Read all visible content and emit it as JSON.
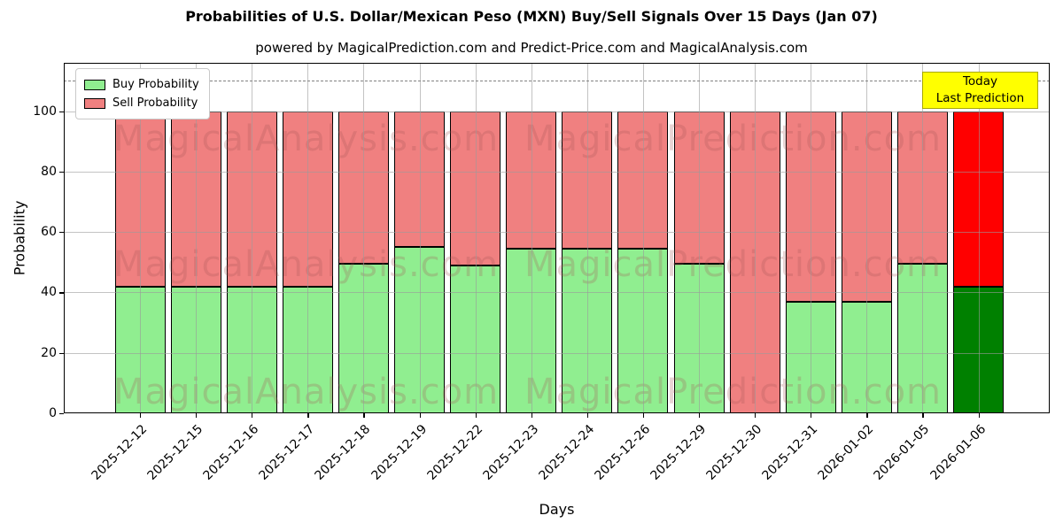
{
  "title": "Probabilities of U.S. Dollar/Mexican Peso (MXN) Buy/Sell Signals Over 15 Days (Jan 07)",
  "subtitle": "powered by MagicalPrediction.com and Predict-Price.com and MagicalAnalysis.com",
  "axes": {
    "xlabel": "Days",
    "ylabel": "Probability"
  },
  "legend": {
    "items": [
      {
        "label": "Buy Probability",
        "color": "#90EE90"
      },
      {
        "label": "Sell Probability",
        "color": "#F08080"
      }
    ]
  },
  "annotation_box": {
    "line1": "Today",
    "line2": "Last Prediction",
    "bg_color": "#FFFF00",
    "border_color": "#A8A800"
  },
  "watermarks": {
    "left_text": "MagicalAnalysis.com",
    "right_text": "MagicalPrediction.com"
  },
  "chart_data": {
    "type": "bar",
    "stacked": true,
    "title": "Probabilities of U.S. Dollar/Mexican Peso (MXN) Buy/Sell Signals Over 15 Days (Jan 07)",
    "xlabel": "Days",
    "ylabel": "Probability",
    "categories": [
      "2025-12-12",
      "2025-12-15",
      "2025-12-16",
      "2025-12-17",
      "2025-12-18",
      "2025-12-19",
      "2025-12-22",
      "2025-12-23",
      "2025-12-24",
      "2025-12-26",
      "2025-12-29",
      "2025-12-30",
      "2025-12-31",
      "2026-01-02",
      "2026-01-05",
      "2026-01-06"
    ],
    "series": [
      {
        "name": "Buy Probability",
        "color": "#90EE90",
        "values": [
          42,
          42,
          42,
          42,
          49.5,
          55,
          49,
          54.5,
          54.5,
          54.5,
          49.5,
          0,
          37,
          37,
          49.5,
          42
        ]
      },
      {
        "name": "Sell Probability",
        "color": "#F08080",
        "values": [
          58,
          58,
          58,
          58,
          50.5,
          45,
          51,
          45.5,
          45.5,
          45.5,
          50.5,
          100,
          63,
          63,
          50.5,
          58
        ]
      }
    ],
    "highlight_last_bar": {
      "index": 15,
      "buy_color": "#008000",
      "sell_color": "#FF0000",
      "note": "Today / Last Prediction"
    },
    "yticks": [
      0,
      20,
      40,
      60,
      80,
      100
    ],
    "ylim": [
      0,
      116
    ],
    "dashed_hline": 110,
    "grid": true,
    "bar_edge_color": "#000000",
    "legend_position": "upper left"
  }
}
